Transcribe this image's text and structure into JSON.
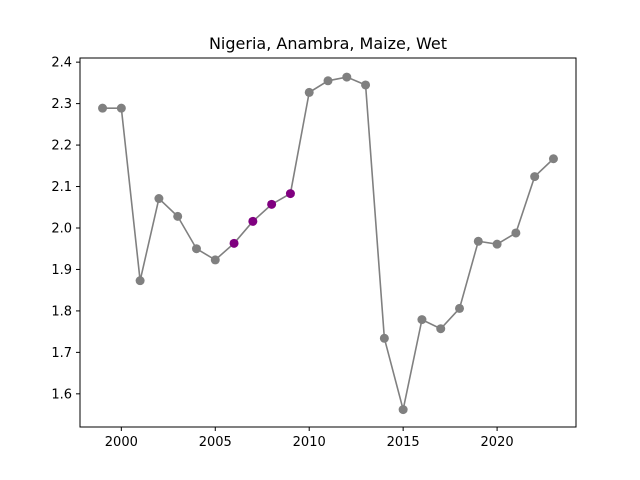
{
  "chart_data": {
    "type": "line",
    "title": "Nigeria, Anambra, Maize, Wet",
    "xlabel": "",
    "ylabel": "",
    "xlim": [
      1997.8,
      2024.2
    ],
    "ylim": [
      1.52,
      2.41
    ],
    "x_ticks": [
      2000,
      2005,
      2010,
      2015,
      2020
    ],
    "y_ticks": [
      1.6,
      1.7,
      1.8,
      1.9,
      2.0,
      2.1,
      2.2,
      2.3,
      2.4
    ],
    "grid": false,
    "legend": "none",
    "series": [
      {
        "x": [
          1999,
          2000,
          2001,
          2002,
          2003,
          2004,
          2005,
          2006,
          2007,
          2008,
          2009,
          2010,
          2011,
          2012,
          2013,
          2014,
          2015,
          2016,
          2017,
          2018,
          2019,
          2020,
          2021,
          2022,
          2023
        ],
        "y": [
          2.289,
          2.289,
          1.873,
          2.071,
          2.028,
          1.95,
          1.923,
          1.963,
          2.016,
          2.057,
          2.083,
          2.327,
          2.355,
          2.364,
          2.345,
          1.734,
          1.562,
          1.779,
          1.757,
          1.806,
          1.968,
          1.961,
          1.988,
          2.124,
          2.167
        ],
        "highlighted_x": [
          2006,
          2007,
          2008,
          2009
        ]
      }
    ],
    "colors": {
      "line": "#808080",
      "marker": "#808080",
      "highlight": "#800080"
    }
  }
}
